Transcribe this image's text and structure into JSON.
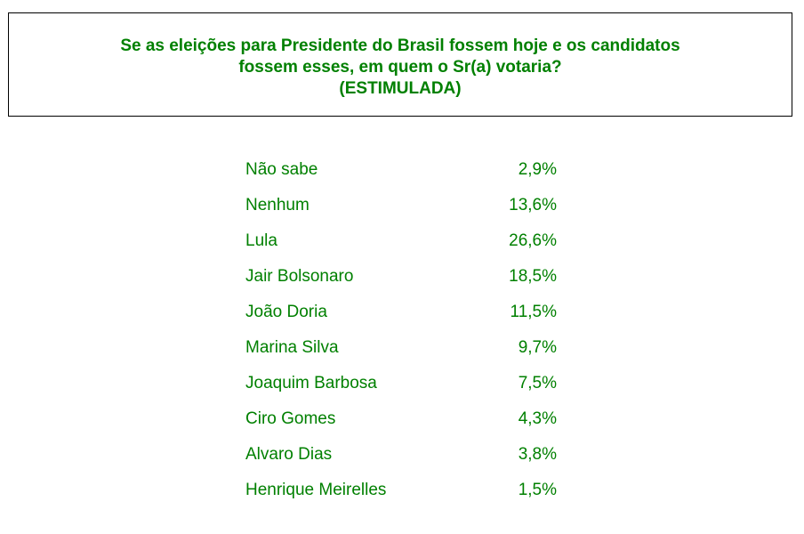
{
  "header": {
    "title_line1": "Se as eleições para Presidente do Brasil fossem hoje e os candidatos",
    "title_line2": "fossem esses, em quem o Sr(a) votaria?",
    "title_line3": "(ESTIMULADA)"
  },
  "colors": {
    "text": "#008000",
    "border": "#000000",
    "background": "#ffffff"
  },
  "results": [
    {
      "label": "Não sabe",
      "value": "2,9%"
    },
    {
      "label": "Nenhum",
      "value": "13,6%"
    },
    {
      "label": "Lula",
      "value": "26,6%"
    },
    {
      "label": "Jair Bolsonaro",
      "value": "18,5%"
    },
    {
      "label": "João Doria",
      "value": "11,5%"
    },
    {
      "label": "Marina Silva",
      "value": "9,7%"
    },
    {
      "label": "Joaquim Barbosa",
      "value": "7,5%"
    },
    {
      "label": "Ciro Gomes",
      "value": "4,3%"
    },
    {
      "label": "Alvaro Dias",
      "value": "3,8%"
    },
    {
      "label": "Henrique Meirelles",
      "value": "1,5%"
    }
  ]
}
